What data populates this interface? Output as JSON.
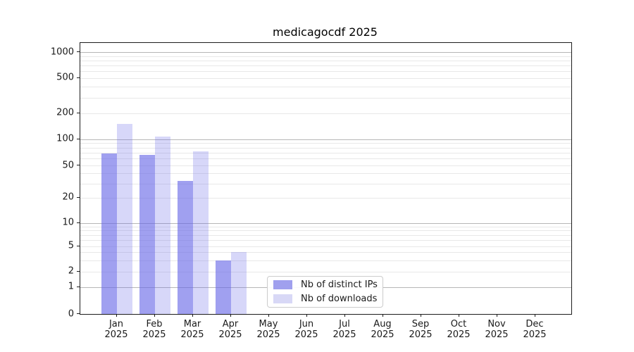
{
  "title": "medicagocdf 2025",
  "colors": {
    "ips_fill": "rgba(102,102,230,0.62)",
    "downloads_fill": "rgba(102,102,230,0.26)",
    "ips_swatch": "#a0a0ee",
    "downloads_swatch": "#d8d8f6",
    "major_grid": "#b6b6b6",
    "minor_grid": "#e8e8e8",
    "spine": "#1c1c1c"
  },
  "legend": {
    "items": [
      {
        "label": "Nb of distinct IPs",
        "series": "ips"
      },
      {
        "label": "Nb of downloads",
        "series": "downloads"
      }
    ]
  },
  "y_axis": {
    "ticks": [
      {
        "value": 1000,
        "label": "1000"
      },
      {
        "value": 500,
        "label": "500"
      },
      {
        "value": 200,
        "label": "200"
      },
      {
        "value": 100,
        "label": "100"
      },
      {
        "value": 50,
        "label": "50"
      },
      {
        "value": 20,
        "label": "20"
      },
      {
        "value": 10,
        "label": "10"
      },
      {
        "value": 5,
        "label": "5"
      },
      {
        "value": 2,
        "label": "2"
      },
      {
        "value": 1,
        "label": "1"
      },
      {
        "value": 0,
        "label": "0"
      }
    ]
  },
  "x_axis": {
    "months": [
      "Jan",
      "Feb",
      "Mar",
      "Apr",
      "May",
      "Jun",
      "Jul",
      "Aug",
      "Sep",
      "Oct",
      "Nov",
      "Dec"
    ],
    "year": "2025"
  },
  "chart_data": {
    "type": "bar",
    "title": "medicagocdf 2025",
    "categories": [
      "Jan 2025",
      "Feb 2025",
      "Mar 2025",
      "Apr 2025",
      "May 2025",
      "Jun 2025",
      "Jul 2025",
      "Aug 2025",
      "Sep 2025",
      "Oct 2025",
      "Nov 2025",
      "Dec 2025"
    ],
    "series": [
      {
        "name": "Nb of distinct IPs",
        "values": [
          68,
          66,
          32,
          3,
          0,
          0,
          0,
          0,
          0,
          0,
          0,
          0
        ]
      },
      {
        "name": "Nb of downloads",
        "values": [
          150,
          107,
          72,
          4,
          0,
          0,
          0,
          0,
          0,
          0,
          0,
          0
        ]
      }
    ],
    "yscale": "symlog",
    "y_ticks": [
      0,
      1,
      2,
      5,
      10,
      20,
      50,
      100,
      200,
      500,
      1000
    ],
    "ylim": [
      0,
      1300
    ],
    "xlabel": "",
    "ylabel": "",
    "grid": "horizontal, major and log-minor",
    "legend_position": "lower center"
  }
}
